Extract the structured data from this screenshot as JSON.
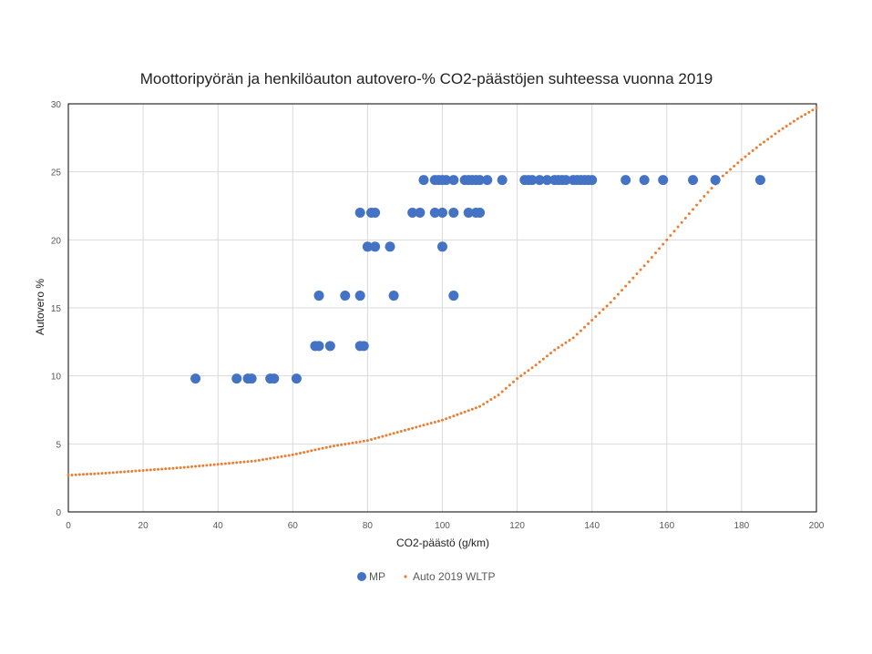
{
  "chart_data": {
    "type": "scatter",
    "title": "Moottoripyörän ja henkilöauton autovero-% CO2-päästöjen suhteessa vuonna 2019",
    "xlabel": "CO2-päästö (g/km)",
    "ylabel": "Autovero %",
    "xlim": [
      0,
      200
    ],
    "ylim": [
      0,
      30
    ],
    "xticks": [
      0,
      20,
      40,
      60,
      80,
      100,
      120,
      140,
      160,
      180,
      200
    ],
    "yticks": [
      0,
      5,
      10,
      15,
      20,
      25,
      30
    ],
    "grid": true,
    "legend_position": "bottom",
    "series": [
      {
        "name": "MP",
        "color": "#4472C4",
        "marker": "circle",
        "points": [
          [
            34,
            9.8
          ],
          [
            45,
            9.8
          ],
          [
            48,
            9.8
          ],
          [
            49,
            9.8
          ],
          [
            54,
            9.8
          ],
          [
            55,
            9.8
          ],
          [
            61,
            9.8
          ],
          [
            66,
            12.2
          ],
          [
            67,
            12.2
          ],
          [
            70,
            12.2
          ],
          [
            78,
            12.2
          ],
          [
            79,
            12.2
          ],
          [
            67,
            15.9
          ],
          [
            74,
            15.9
          ],
          [
            78,
            15.9
          ],
          [
            87,
            15.9
          ],
          [
            103,
            15.9
          ],
          [
            80,
            19.5
          ],
          [
            82,
            19.5
          ],
          [
            86,
            19.5
          ],
          [
            100,
            19.5
          ],
          [
            78,
            22.0
          ],
          [
            81,
            22.0
          ],
          [
            82,
            22.0
          ],
          [
            92,
            22.0
          ],
          [
            94,
            22.0
          ],
          [
            98,
            22.0
          ],
          [
            100,
            22.0
          ],
          [
            103,
            22.0
          ],
          [
            107,
            22.0
          ],
          [
            109,
            22.0
          ],
          [
            110,
            22.0
          ],
          [
            95,
            24.4
          ],
          [
            98,
            24.4
          ],
          [
            99,
            24.4
          ],
          [
            100,
            24.4
          ],
          [
            101,
            24.4
          ],
          [
            103,
            24.4
          ],
          [
            106,
            24.4
          ],
          [
            107,
            24.4
          ],
          [
            108,
            24.4
          ],
          [
            109,
            24.4
          ],
          [
            110,
            24.4
          ],
          [
            112,
            24.4
          ],
          [
            116,
            24.4
          ],
          [
            122,
            24.4
          ],
          [
            123,
            24.4
          ],
          [
            124,
            24.4
          ],
          [
            126,
            24.4
          ],
          [
            128,
            24.4
          ],
          [
            130,
            24.4
          ],
          [
            131,
            24.4
          ],
          [
            132,
            24.4
          ],
          [
            133,
            24.4
          ],
          [
            135,
            24.4
          ],
          [
            136,
            24.4
          ],
          [
            137,
            24.4
          ],
          [
            138,
            24.4
          ],
          [
            139,
            24.4
          ],
          [
            140,
            24.4
          ],
          [
            149,
            24.4
          ],
          [
            154,
            24.4
          ],
          [
            159,
            24.4
          ],
          [
            167,
            24.4
          ],
          [
            173,
            24.4
          ],
          [
            185,
            24.4
          ]
        ]
      },
      {
        "name": "Auto 2019 WLTP",
        "color": "#ED7D31",
        "marker": "small-dot",
        "points": [
          [
            0,
            2.7
          ],
          [
            10,
            2.85
          ],
          [
            20,
            3.05
          ],
          [
            30,
            3.25
          ],
          [
            40,
            3.5
          ],
          [
            50,
            3.75
          ],
          [
            60,
            4.2
          ],
          [
            70,
            4.8
          ],
          [
            80,
            5.25
          ],
          [
            90,
            6.0
          ],
          [
            100,
            6.75
          ],
          [
            110,
            7.75
          ],
          [
            115,
            8.6
          ],
          [
            120,
            9.8
          ],
          [
            125,
            10.8
          ],
          [
            130,
            11.9
          ],
          [
            135,
            12.8
          ],
          [
            140,
            14.1
          ],
          [
            145,
            15.4
          ],
          [
            150,
            16.9
          ],
          [
            155,
            18.4
          ],
          [
            160,
            20.0
          ],
          [
            165,
            21.6
          ],
          [
            170,
            23.2
          ],
          [
            175,
            24.7
          ],
          [
            180,
            25.9
          ],
          [
            185,
            27.0
          ],
          [
            190,
            28.0
          ],
          [
            195,
            28.9
          ],
          [
            200,
            29.7
          ]
        ]
      }
    ]
  }
}
